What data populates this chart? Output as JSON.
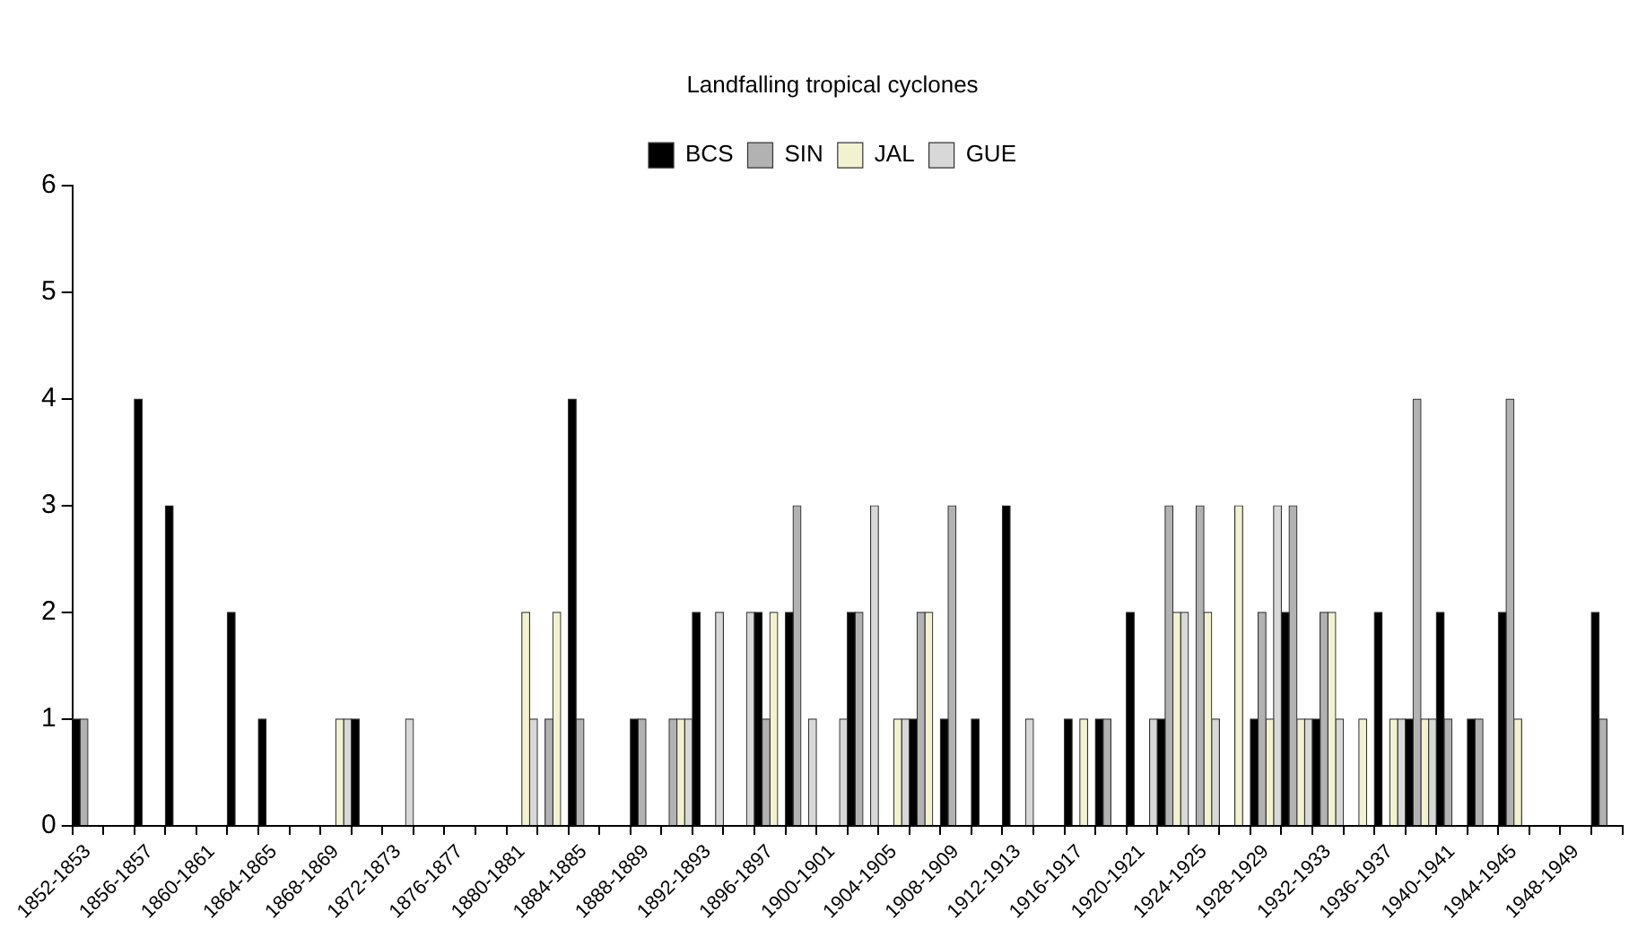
{
  "chart_data": {
    "type": "bar",
    "title": "Landfalling tropical cyclones",
    "categories": [
      "1852-1853",
      null,
      "1856-1857",
      null,
      "1860-1861",
      null,
      "1864-1865",
      null,
      "1868-1869",
      null,
      "1872-1873",
      null,
      "1876-1877",
      null,
      "1880-1881",
      null,
      "1884-1885",
      null,
      "1888-1889",
      null,
      "1892-1893",
      null,
      "1896-1897",
      null,
      "1900-1901",
      null,
      "1904-1905",
      null,
      "1908-1909",
      null,
      "1912-1913",
      null,
      "1916-1917",
      null,
      "1920-1921",
      null,
      "1924-1925",
      null,
      "1928-1929",
      null,
      "1932-1933",
      null,
      "1936-1937",
      null,
      "1940-1941",
      null,
      "1944-1945",
      null,
      "1948-1949",
      null
    ],
    "series": [
      {
        "name": "BCS",
        "color": "#000000",
        "values": [
          1,
          0,
          4,
          3,
          0,
          2,
          1,
          0,
          0,
          1,
          0,
          0,
          0,
          0,
          0,
          0,
          4,
          0,
          1,
          0,
          2,
          0,
          2,
          2,
          0,
          2,
          0,
          1,
          1,
          1,
          3,
          0,
          1,
          1,
          2,
          1,
          0,
          0,
          1,
          2,
          1,
          0,
          2,
          1,
          2,
          1,
          2,
          0,
          0,
          2
        ]
      },
      {
        "name": "SIN",
        "color": "#b2b2b2",
        "values": [
          1,
          0,
          0,
          0,
          0,
          0,
          0,
          0,
          0,
          0,
          0,
          0,
          0,
          0,
          0,
          1,
          1,
          0,
          1,
          1,
          0,
          0,
          1,
          3,
          0,
          2,
          0,
          2,
          3,
          0,
          0,
          0,
          0,
          1,
          0,
          3,
          3,
          0,
          2,
          3,
          2,
          0,
          0,
          4,
          1,
          1,
          4,
          0,
          0,
          1
        ]
      },
      {
        "name": "JAL",
        "color": "#f2f2d0",
        "values": [
          0,
          0,
          0,
          0,
          0,
          0,
          0,
          0,
          1,
          0,
          0,
          0,
          0,
          0,
          2,
          2,
          0,
          0,
          0,
          1,
          0,
          0,
          2,
          0,
          0,
          0,
          1,
          2,
          0,
          0,
          0,
          0,
          1,
          0,
          0,
          2,
          2,
          3,
          1,
          1,
          2,
          1,
          1,
          1,
          0,
          0,
          1,
          0,
          0,
          0
        ]
      },
      {
        "name": "GUE",
        "color": "#d8d8d8",
        "values": [
          0,
          0,
          0,
          0,
          0,
          0,
          0,
          0,
          1,
          0,
          1,
          0,
          0,
          0,
          1,
          0,
          0,
          0,
          0,
          1,
          2,
          2,
          0,
          1,
          1,
          3,
          1,
          0,
          0,
          0,
          1,
          0,
          0,
          0,
          1,
          2,
          1,
          0,
          3,
          1,
          1,
          0,
          1,
          1,
          0,
          0,
          0,
          0,
          0,
          0
        ]
      }
    ],
    "ylim": [
      0,
      6
    ],
    "yticks": [
      0,
      1,
      2,
      3,
      4,
      5,
      6
    ],
    "grid": false,
    "legend": "top"
  }
}
